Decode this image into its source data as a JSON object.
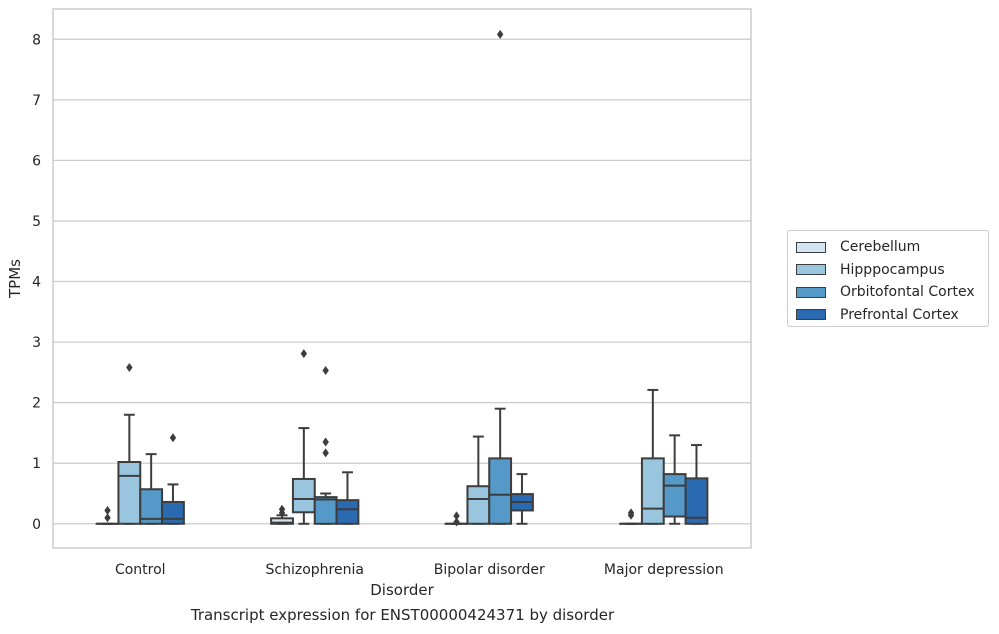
{
  "chart_data": {
    "type": "box",
    "xlabel": "Disorder",
    "ylabel": "TPMs",
    "caption": "Transcript expression for ENST00000424371 by disorder",
    "ylim": [
      -0.4,
      8.5
    ],
    "yticks": [
      "0",
      "1",
      "2",
      "3",
      "4",
      "5",
      "6",
      "7",
      "8"
    ],
    "grid": true,
    "legend_position": "right",
    "categories": [
      "Control",
      "Schizophrenia",
      "Bipolar disorder",
      "Major depression"
    ],
    "series": [
      {
        "name": "Cerebellum",
        "color": "#d3e4f3",
        "boxes": [
          {
            "q1": 0,
            "median": 0,
            "q3": 0,
            "whislo": 0,
            "whishi": 0,
            "fliers": [
              0.1,
              0.22
            ]
          },
          {
            "q1": 0,
            "median": 0.02,
            "q3": 0.09,
            "whislo": 0,
            "whishi": 0.14,
            "fliers": [
              0.18,
              0.24
            ]
          },
          {
            "q1": 0,
            "median": 0,
            "q3": 0,
            "whislo": 0,
            "whishi": 0,
            "fliers": [
              0.03,
              0.13
            ]
          },
          {
            "q1": 0,
            "median": 0,
            "q3": 0,
            "whislo": 0,
            "whishi": 0,
            "fliers": [
              0.14,
              0.18
            ]
          }
        ]
      },
      {
        "name": "Hipppocampus",
        "color": "#9ac5de",
        "boxes": [
          {
            "q1": 0,
            "median": 0.79,
            "q3": 1.02,
            "whislo": 0,
            "whishi": 1.8,
            "fliers": [
              2.58
            ]
          },
          {
            "q1": 0.19,
            "median": 0.41,
            "q3": 0.74,
            "whislo": 0,
            "whishi": 1.58,
            "fliers": [
              2.81
            ]
          },
          {
            "q1": 0,
            "median": 0.41,
            "q3": 0.62,
            "whislo": 0,
            "whishi": 1.44,
            "fliers": []
          },
          {
            "q1": 0,
            "median": 0.25,
            "q3": 1.08,
            "whislo": 0,
            "whishi": 2.21,
            "fliers": []
          }
        ]
      },
      {
        "name": "Orbitofontal Cortex",
        "color": "#5599c8",
        "boxes": [
          {
            "q1": 0,
            "median": 0.08,
            "q3": 0.57,
            "whislo": 0,
            "whishi": 1.15,
            "fliers": []
          },
          {
            "q1": 0,
            "median": 0.4,
            "q3": 0.44,
            "whislo": 0,
            "whishi": 0.5,
            "fliers": [
              1.17,
              1.35,
              2.53
            ]
          },
          {
            "q1": 0,
            "median": 0.48,
            "q3": 1.08,
            "whislo": 0,
            "whishi": 1.9,
            "fliers": [
              8.08
            ]
          },
          {
            "q1": 0.12,
            "median": 0.63,
            "q3": 0.82,
            "whislo": 0,
            "whishi": 1.46,
            "fliers": []
          }
        ]
      },
      {
        "name": "Prefrontal Cortex",
        "color": "#2a6ab0",
        "boxes": [
          {
            "q1": 0,
            "median": 0.08,
            "q3": 0.36,
            "whislo": 0,
            "whishi": 0.65,
            "fliers": [
              1.42
            ]
          },
          {
            "q1": 0,
            "median": 0.24,
            "q3": 0.39,
            "whislo": 0,
            "whishi": 0.85,
            "fliers": []
          },
          {
            "q1": 0.22,
            "median": 0.36,
            "q3": 0.49,
            "whislo": 0,
            "whishi": 0.82,
            "fliers": []
          },
          {
            "q1": 0,
            "median": 0.1,
            "q3": 0.75,
            "whislo": 0,
            "whishi": 1.3,
            "fliers": []
          }
        ]
      }
    ]
  }
}
